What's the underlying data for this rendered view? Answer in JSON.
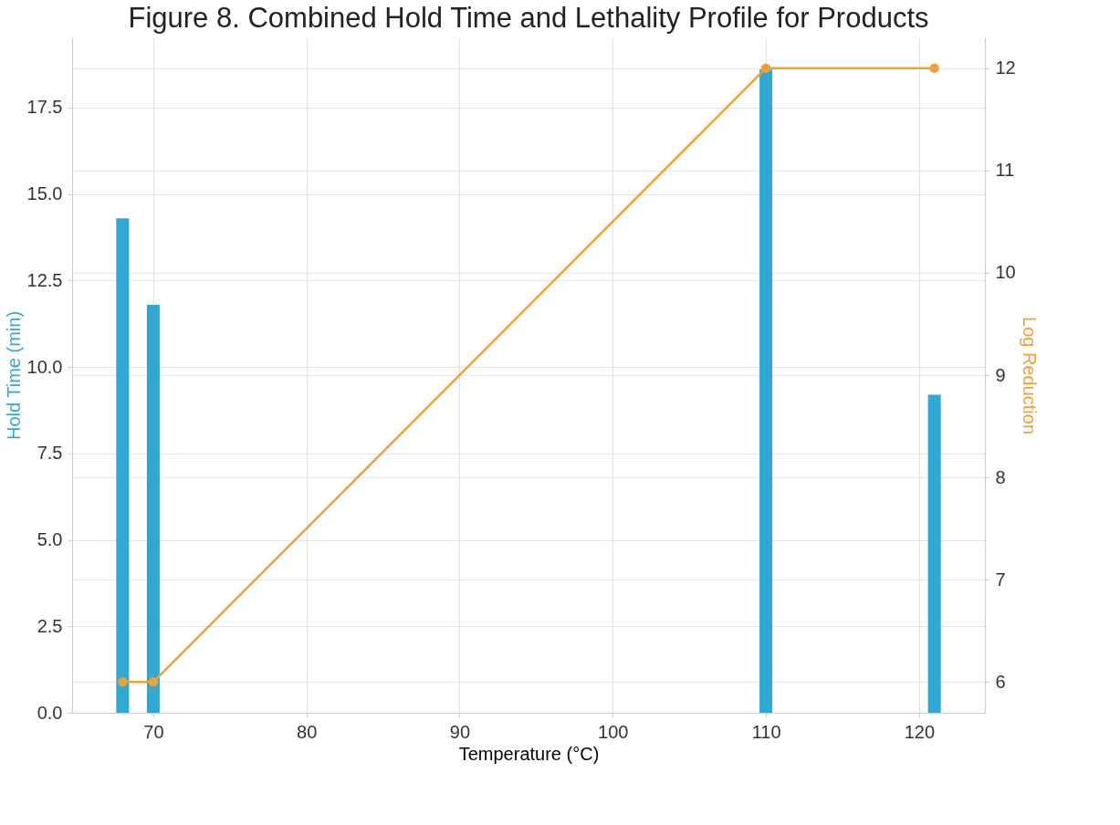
{
  "chart_data": {
    "type": "bar",
    "title": "Figure 8. Combined Hold Time and Lethality Profile for Products",
    "xlabel": "Temperature (°C)",
    "ylabel": "Hold Time (min)",
    "y2label": "Log Reduction",
    "x": [
      68,
      70,
      110,
      121
    ],
    "series": [
      {
        "color": "#2fa8d3",
        "values": [
          14.3,
          11.8,
          18.6,
          9.2
        ]
      },
      {
        "type": "line",
        "axis": "y2",
        "color": "#f0a034",
        "values": [
          6,
          6,
          12,
          12
        ]
      }
    ],
    "xlim": [
      65,
      124
    ],
    "xticks": [
      70,
      80,
      90,
      100,
      110,
      120
    ],
    "ylim": [
      0,
      19.53
    ],
    "yticks": [
      {
        "value": 0,
        "label": "0.0"
      },
      {
        "value": 2.5,
        "label": "2.5"
      },
      {
        "value": 5,
        "label": "5.0"
      },
      {
        "value": 7.5,
        "label": "7.5"
      },
      {
        "value": 10,
        "label": "10.0"
      },
      {
        "value": 12.5,
        "label": "12.5"
      },
      {
        "value": 15,
        "label": "15.0"
      },
      {
        "value": 17.5,
        "label": "17.5"
      }
    ],
    "y2lim": [
      5.7,
      12.3
    ],
    "y2ticks": [
      6,
      7,
      8,
      9,
      10,
      11,
      12
    ],
    "grid": true,
    "marker": "circle",
    "line_style": "solid"
  }
}
